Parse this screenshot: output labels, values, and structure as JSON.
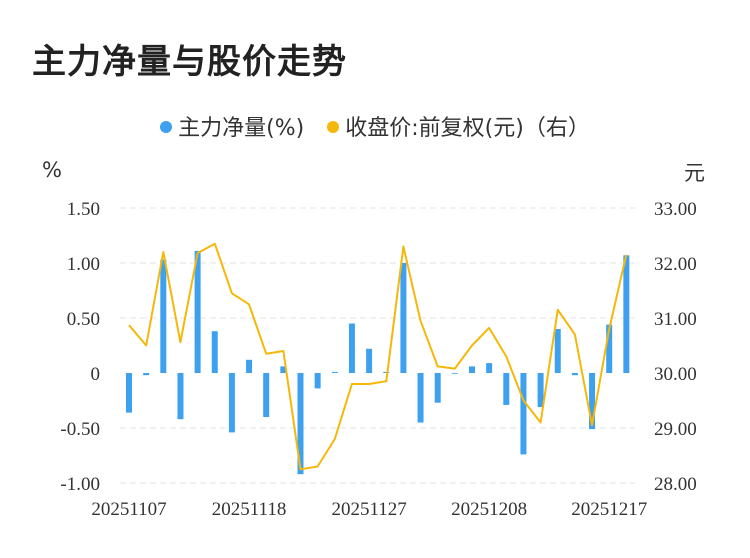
{
  "title": "主力净量与股价走势",
  "legend": [
    {
      "label": "主力净量(%)",
      "color": "#3ea1f0"
    },
    {
      "label": "收盘价:前复权(元)（右）",
      "color": "#f5b80a"
    }
  ],
  "chart_data": {
    "type": "bar+line",
    "left_unit": "%",
    "right_unit": "元",
    "left_ticks": [
      "1.50",
      "1.00",
      "0.50",
      "0",
      "-0.50",
      "-1.00"
    ],
    "right_ticks": [
      "33.00",
      "32.00",
      "31.00",
      "30.00",
      "29.00",
      "28.00"
    ],
    "left_ylim": [
      -1.0,
      1.5
    ],
    "right_ylim": [
      28.0,
      33.0
    ],
    "x_tick_labels": [
      "20251107",
      "20251118",
      "20251127",
      "20251208",
      "20251217"
    ],
    "x_tick_index": [
      0,
      7,
      14,
      21,
      28
    ],
    "series": [
      {
        "name": "主力净量(%)",
        "type": "bar",
        "values": [
          -0.36,
          -0.02,
          1.03,
          -0.42,
          1.11,
          0.38,
          -0.54,
          0.12,
          -0.4,
          0.06,
          -0.92,
          -0.14,
          0.01,
          0.45,
          0.22,
          0.01,
          1.0,
          -0.45,
          -0.27,
          0.0,
          0.06,
          0.09,
          -0.29,
          -0.74,
          -0.31,
          0.4,
          -0.02,
          -0.51,
          0.44,
          1.07
        ]
      },
      {
        "name": "收盘价:前复权(元)（右）",
        "type": "line",
        "values": [
          30.87,
          30.5,
          32.2,
          30.56,
          32.18,
          32.35,
          31.45,
          31.25,
          30.35,
          30.4,
          28.25,
          28.3,
          28.8,
          29.8,
          29.8,
          29.85,
          32.3,
          30.95,
          30.12,
          30.08,
          30.5,
          30.82,
          30.3,
          29.5,
          29.1,
          31.15,
          30.7,
          29.05,
          30.8,
          32.15
        ]
      }
    ],
    "grid": true
  }
}
